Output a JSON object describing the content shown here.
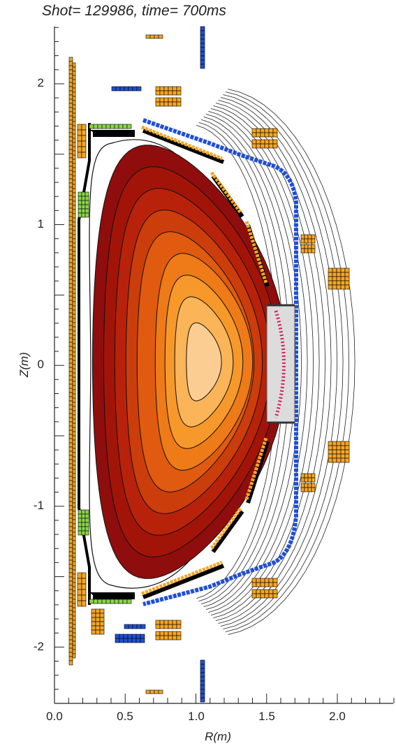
{
  "title": "Shot= 129986, time= 700ms",
  "axes": {
    "xlabel": "R(m)",
    "ylabel": "Z(m)",
    "xticks": [
      "0.0",
      "0.5",
      "1.0",
      "1.5",
      "2.0"
    ],
    "yticks": [
      "2",
      "1",
      "0",
      "-1",
      "-2"
    ],
    "xlim": [
      0.0,
      2.4
    ],
    "ylim": [
      -2.4,
      2.4
    ]
  },
  "colors": {
    "coil": "#f5a623",
    "blue_coil": "#1f4fd6",
    "green_tile": "#8bd64a",
    "antenna": "#d81b60",
    "plasma_levels": [
      "#8f0d0d",
      "#a31408",
      "#b8220b",
      "#cc3d0c",
      "#e05a10",
      "#ee7a18",
      "#f7982b",
      "#fbb457",
      "#fccd92"
    ]
  }
}
